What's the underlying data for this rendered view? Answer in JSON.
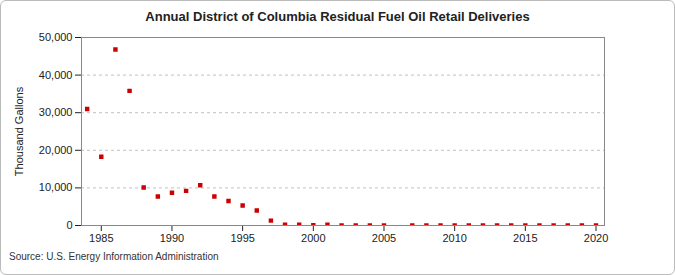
{
  "chart_data": {
    "type": "scatter",
    "title": "Annual District of Columbia Residual Fuel Oil Retail Deliveries",
    "y_label": "Thousand Gallons",
    "source": "Source: U.S. Energy Information Administration",
    "x": [
      1984,
      1985,
      1986,
      1987,
      1988,
      1989,
      1990,
      1991,
      1992,
      1993,
      1994,
      1995,
      1996,
      1997,
      1998,
      1999,
      2000,
      2001,
      2002,
      2003,
      2004,
      2005,
      2006,
      2007,
      2008,
      2009,
      2010,
      2011,
      2012,
      2013,
      2014,
      2015,
      2016,
      2017,
      2018,
      2019,
      2020
    ],
    "values": [
      31000,
      18300,
      46800,
      35800,
      10100,
      7700,
      8700,
      9200,
      10700,
      7700,
      6500,
      5300,
      4000,
      1300,
      200,
      200,
      100,
      200,
      0,
      0,
      0,
      0,
      null,
      0,
      0,
      0,
      0,
      0,
      0,
      0,
      0,
      0,
      0,
      0,
      0,
      0,
      0
    ],
    "color": "#cc0000",
    "marker": "square",
    "xlim": [
      1983.6,
      2020.6
    ],
    "xticks": [
      1985,
      1990,
      1995,
      2000,
      2005,
      2010,
      2015,
      2020
    ],
    "ylim": [
      0,
      50000
    ],
    "yticks": [
      0,
      {
        "value": 10000,
        "label": "10,000"
      },
      {
        "value": 20000,
        "label": "20,000"
      },
      {
        "value": 30000,
        "label": "30,000"
      },
      {
        "value": 40000,
        "label": "40,000"
      },
      {
        "value": 50000,
        "label": "50,000"
      }
    ],
    "grid": true
  }
}
